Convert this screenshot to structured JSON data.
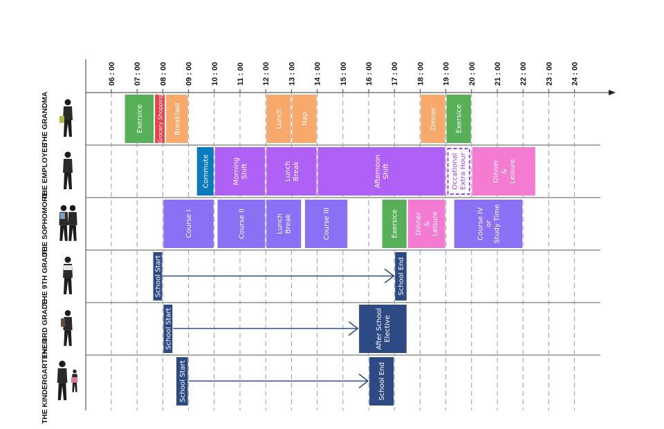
{
  "hours": [
    "06 : 00",
    "07 : 00",
    "08 : 00",
    "09 : 00",
    "10 : 00",
    "11 : 00",
    "12 : 00",
    "13 : 00",
    "14 : 00",
    "15 : 00",
    "16 : 00",
    "17 : 00",
    "18 : 00",
    "19 : 00",
    "20 : 00",
    "21 : 00",
    "22 : 00",
    "23 : 00",
    "24 : 00"
  ],
  "colors": {
    "green": "#57b057",
    "red": "#e8414a",
    "orange": "#f7a96b",
    "teal": "#0a7bbf",
    "violet": "#b061f5",
    "pink": "#f47ad2",
    "periwinkle": "#8a70f5",
    "navy": "#2e4a85",
    "dashed": "#a23ff0"
  },
  "rows": [
    {
      "id": "grandma",
      "label": "THE GRANDMA",
      "figure": "elderly-walker",
      "activities": [
        {
          "label": "Exersice",
          "start": 6.5,
          "end": 7.67,
          "color": "green"
        },
        {
          "label": "Grocery Shopping",
          "start": 7.67,
          "end": 8.1,
          "color": "red",
          "small": true
        },
        {
          "label": "Breakfast",
          "start": 8.1,
          "end": 9.0,
          "color": "orange"
        },
        {
          "label": "Lunch",
          "start": 12.0,
          "end": 13.0,
          "color": "orange"
        },
        {
          "label": "Nap",
          "start": 13.0,
          "end": 14.0,
          "color": "orange"
        },
        {
          "label": "Dinner",
          "start": 18.0,
          "end": 19.0,
          "color": "orange"
        },
        {
          "label": "Exersice",
          "start": 19.0,
          "end": 20.0,
          "color": "green"
        }
      ]
    },
    {
      "id": "employee",
      "label": "THE EMPLOYEE",
      "figure": "office-worker",
      "activities": [
        {
          "label": "Commute",
          "start": 9.3,
          "end": 10.0,
          "color": "teal"
        },
        {
          "label": "Morning\nShift",
          "start": 10.0,
          "end": 12.0,
          "color": "violet"
        },
        {
          "label": "Lunch\nBreak",
          "start": 12.0,
          "end": 14.0,
          "color": "violet"
        },
        {
          "label": "Afternoon\nShift",
          "start": 14.0,
          "end": 19.0,
          "color": "violet"
        },
        {
          "label": "Occational\nExtra Hour",
          "start": 19.0,
          "end": 20.0,
          "color": "dashed",
          "dashed": true
        },
        {
          "label": "Dinner\n&\nLeisure",
          "start": 20.0,
          "end": 22.5,
          "color": "pink"
        }
      ]
    },
    {
      "id": "sophomore",
      "label": "THE SOPHOMORE",
      "figure": "student-pair",
      "activities": [
        {
          "label": "Course I",
          "start": 8.0,
          "end": 10.0,
          "color": "periwinkle"
        },
        {
          "label": "Course II",
          "start": 10.1,
          "end": 12.0,
          "color": "periwinkle"
        },
        {
          "label": "Lunch\nBreak",
          "start": 12.0,
          "end": 13.4,
          "color": "periwinkle"
        },
        {
          "label": "Course III",
          "start": 13.5,
          "end": 15.2,
          "color": "periwinkle"
        },
        {
          "label": "Exersice",
          "start": 16.5,
          "end": 17.5,
          "color": "green"
        },
        {
          "label": "Dinner\n&\nLeisure",
          "start": 17.5,
          "end": 19.0,
          "color": "pink"
        },
        {
          "label": "Course IV\nor\nStudy Time",
          "start": 19.3,
          "end": 22.0,
          "color": "periwinkle"
        }
      ]
    },
    {
      "id": "ninth-grade",
      "label": "THE 9TH GRADE",
      "figure": "teen-student",
      "activities": [
        {
          "label": "School Start",
          "start": 7.6,
          "end": 8.0,
          "color": "navy"
        },
        {
          "label": "School End",
          "start": 17.0,
          "end": 17.5,
          "color": "navy"
        }
      ],
      "arrow": {
        "from": 8.0,
        "to": 17.0
      }
    },
    {
      "id": "third-grade",
      "label": "THE 3RD GRADE",
      "figure": "child-with-backpack",
      "activities": [
        {
          "label": "School Start",
          "start": 8.0,
          "end": 8.4,
          "color": "navy"
        },
        {
          "label": "After School\nElective",
          "start": 15.6,
          "end": 17.5,
          "color": "navy"
        }
      ],
      "arrow": {
        "from": 8.4,
        "to": 15.6
      }
    },
    {
      "id": "kindergartener",
      "label": "THE KINDERGARTENER",
      "figure": "parent-and-child",
      "activities": [
        {
          "label": "School Start",
          "start": 8.5,
          "end": 9.0,
          "color": "navy"
        },
        {
          "label": "School End",
          "start": 16.0,
          "end": 17.0,
          "color": "navy"
        }
      ],
      "arrow": {
        "from": 9.0,
        "to": 16.0
      }
    }
  ]
}
